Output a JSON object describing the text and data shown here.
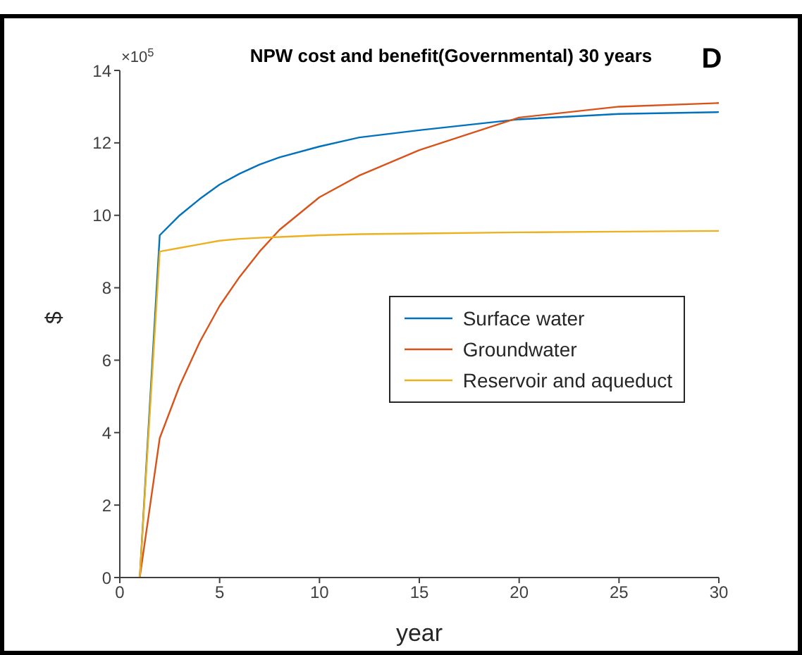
{
  "chart_data": {
    "type": "line",
    "title": "NPW cost and benefit(Governmental) 30 years",
    "xlabel": "year",
    "ylabel": "$",
    "annotations": [
      "×10$^{5}$",
      "D"
    ],
    "x": [
      1,
      2,
      3,
      4,
      5,
      6,
      7,
      8,
      10,
      12,
      15,
      20,
      25,
      30
    ],
    "series": [
      {
        "name": "Surface water",
        "color": "#0072bd",
        "values": [
          0,
          9.45,
          10.0,
          10.45,
          10.85,
          11.15,
          11.4,
          11.6,
          11.9,
          12.15,
          12.35,
          12.65,
          12.8,
          12.85
        ]
      },
      {
        "name": "Groundwater",
        "color": "#d95319",
        "values": [
          0,
          3.85,
          5.3,
          6.5,
          7.5,
          8.3,
          9.0,
          9.6,
          10.5,
          11.1,
          11.8,
          12.7,
          13.0,
          13.1
        ]
      },
      {
        "name": "Reservoir and aqueduct",
        "color": "#edb120",
        "values": [
          0,
          9.0,
          9.1,
          9.2,
          9.3,
          9.35,
          9.38,
          9.4,
          9.45,
          9.48,
          9.5,
          9.53,
          9.55,
          9.57
        ]
      }
    ],
    "xlim": [
      0,
      30
    ],
    "xticks": [
      0,
      5,
      10,
      15,
      20,
      25,
      30
    ],
    "ylim": [
      0,
      14
    ],
    "yticks": [
      0,
      2,
      4,
      6,
      8,
      10,
      12,
      14
    ],
    "grid": false,
    "legend": "right",
    "marker": "none",
    "line_style": "solid"
  }
}
